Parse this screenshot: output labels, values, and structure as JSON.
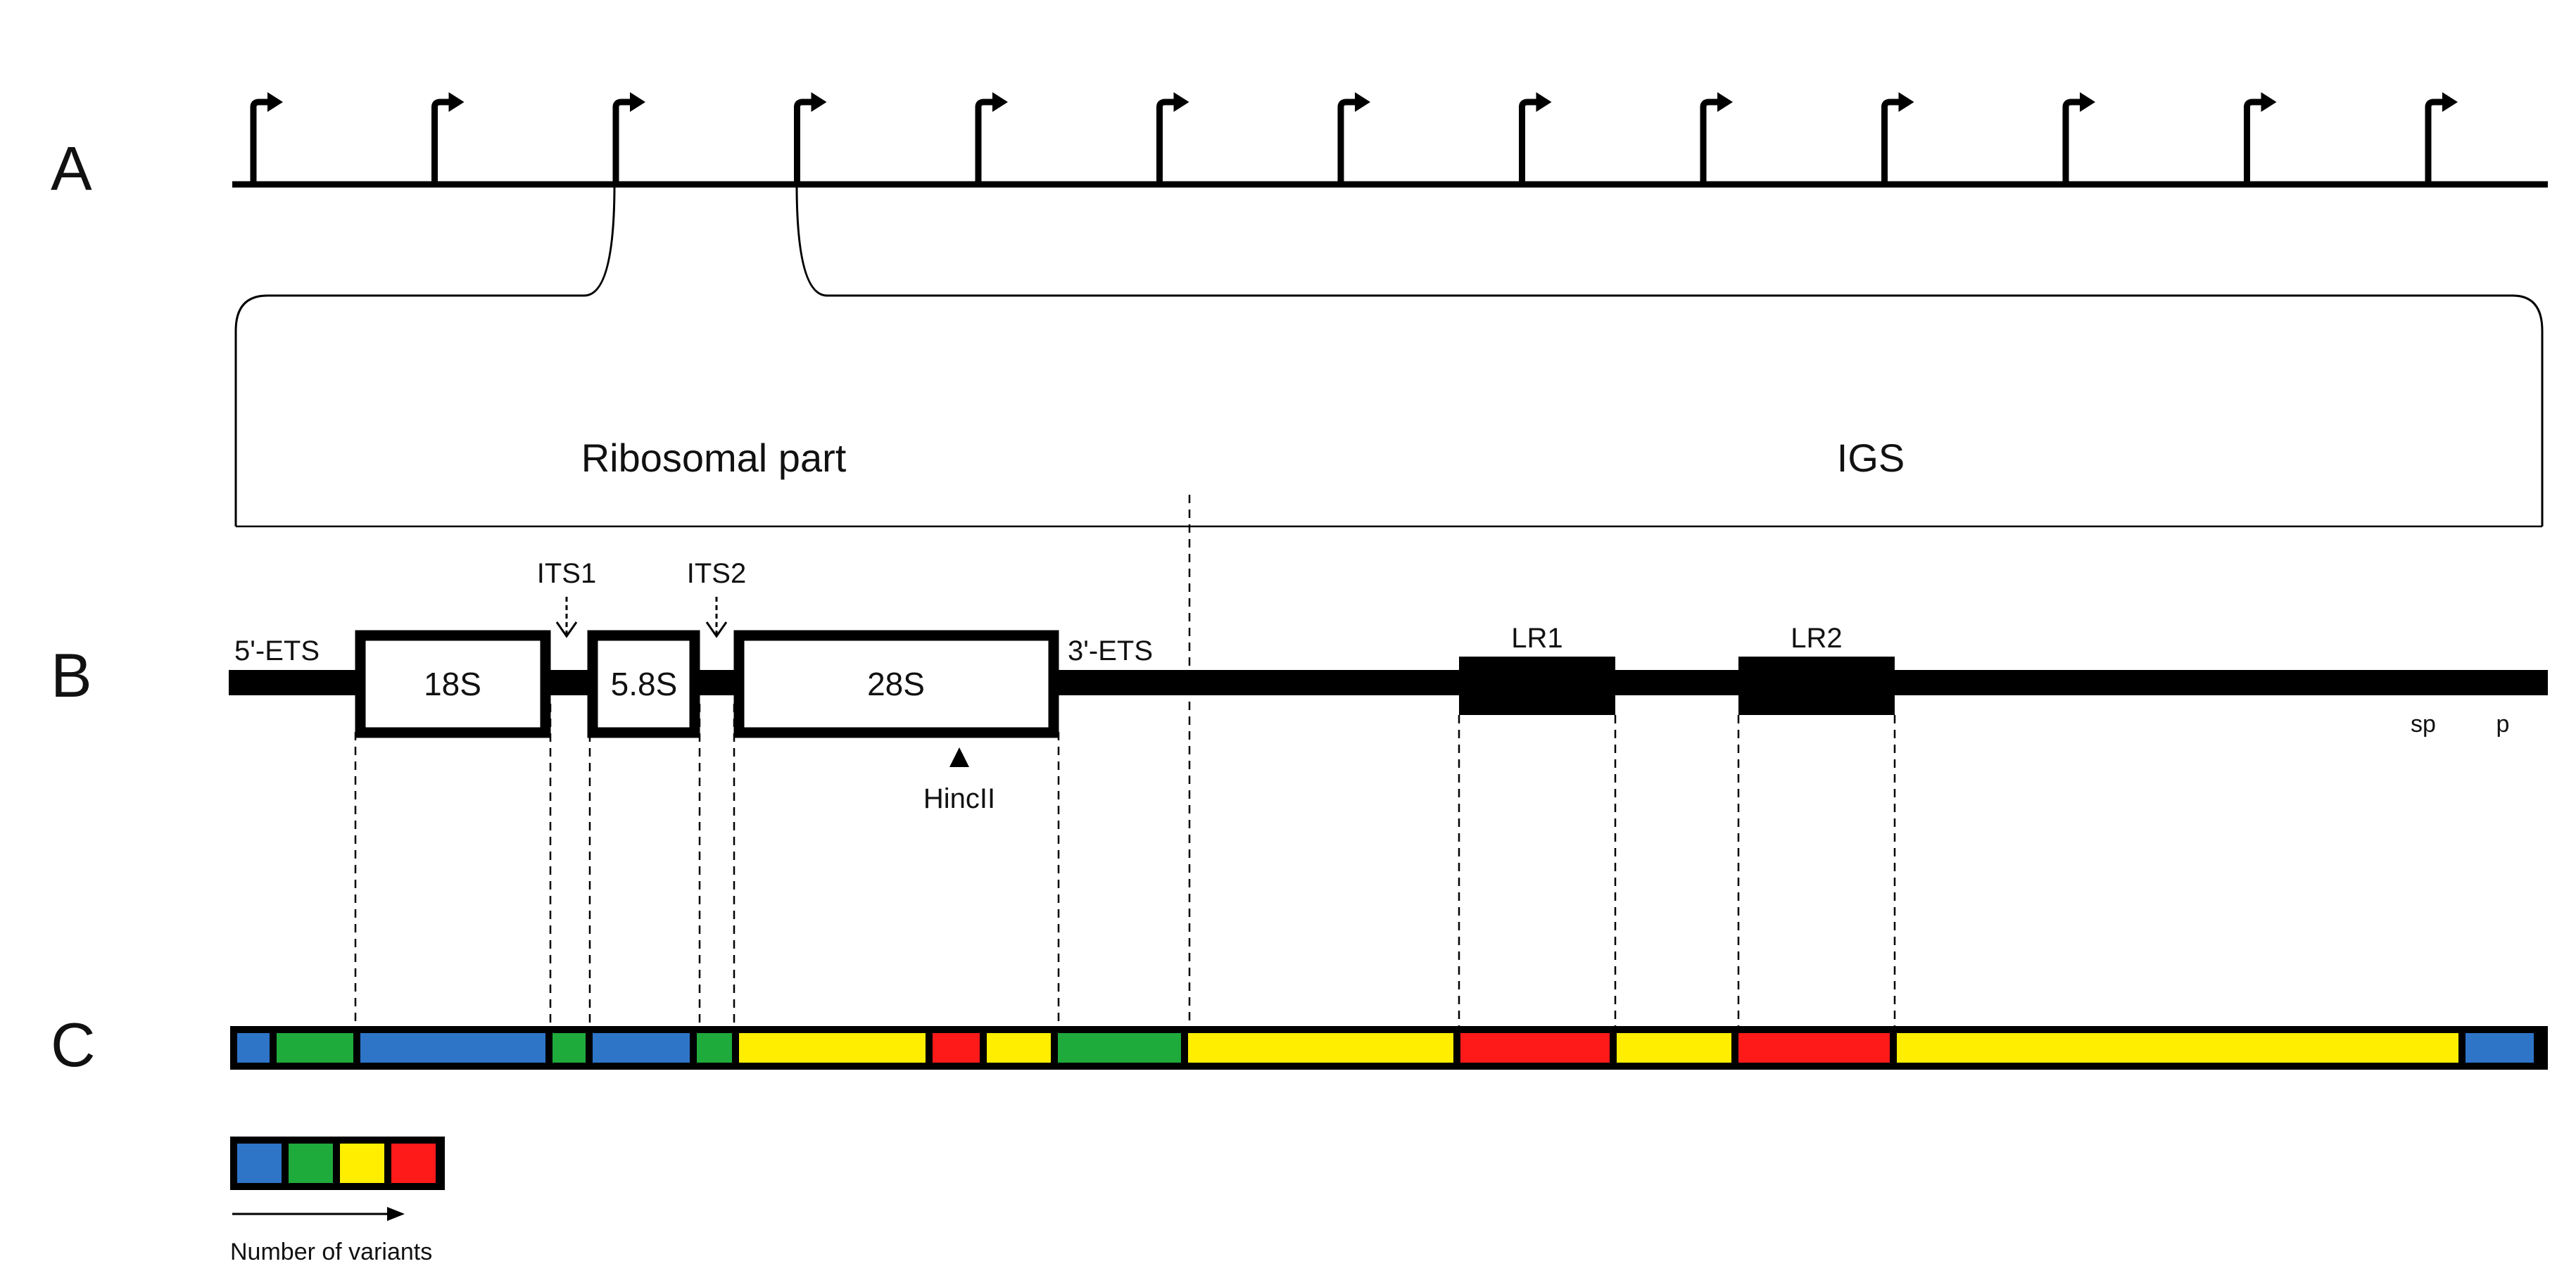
{
  "panels": {
    "a": "A",
    "b": "B",
    "c": "C"
  },
  "regions": {
    "ribosomal": "Ribosomal part",
    "igs": "IGS"
  },
  "genes": {
    "ets5": "5'-ETS",
    "s18": "18S",
    "its1": "ITS1",
    "s58": "5.8S",
    "its2": "ITS2",
    "s28": "28S",
    "ets3": "3'-ETS",
    "lr1": "LR1",
    "lr2": "LR2",
    "hincii": "HincII",
    "sp": "sp",
    "p": "p"
  },
  "legend": {
    "caption": "Number of variants",
    "colors": [
      "#2e75c8",
      "#1faa3c",
      "#ffee00",
      "#ff1a1a"
    ]
  },
  "variant_colors": {
    "blue": "#2e75c8",
    "green": "#1faa3c",
    "yellow": "#ffee00",
    "red": "#ff1a1a"
  },
  "variant_bar": [
    "blue",
    "green",
    "blue",
    "green",
    "blue",
    "green",
    "yellow",
    "red",
    "yellow",
    "green",
    "yellow",
    "red",
    "yellow",
    "red",
    "yellow",
    "blue"
  ],
  "promoter_count": 13
}
